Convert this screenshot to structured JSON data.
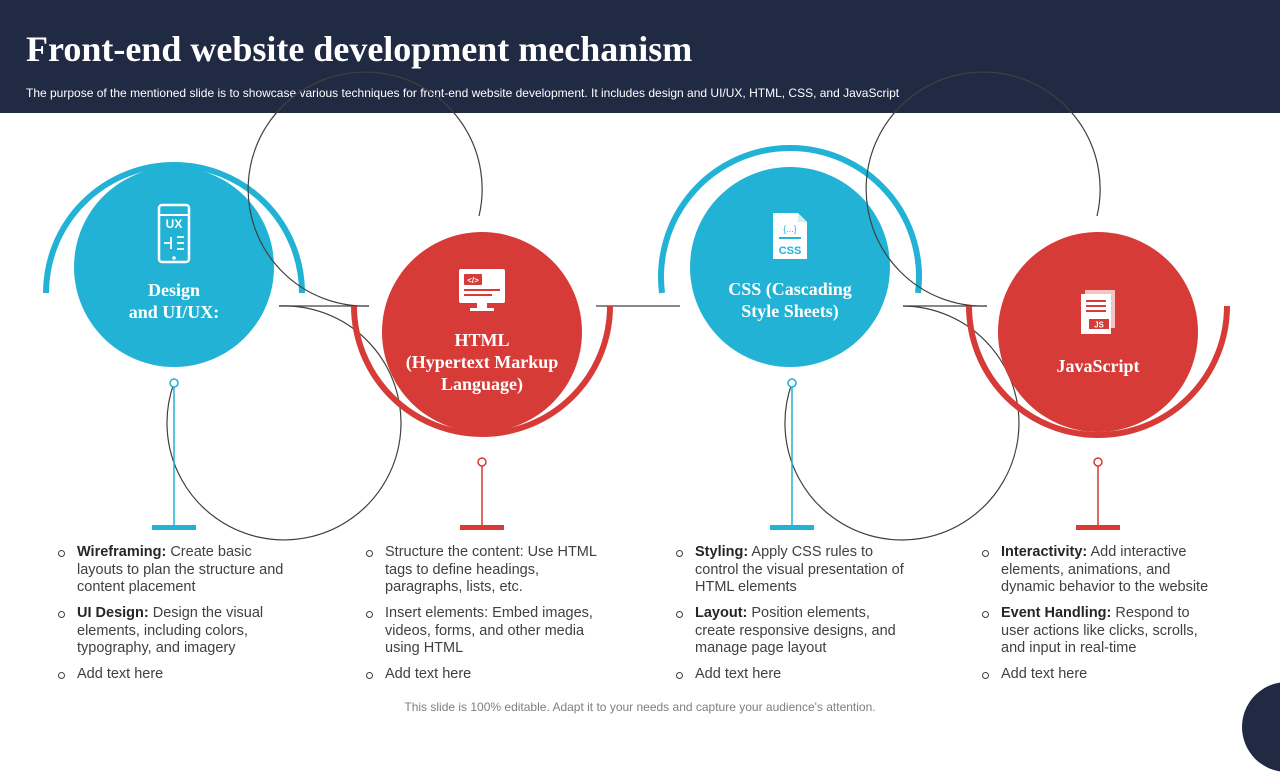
{
  "header": {
    "title": "Front-end website development mechanism",
    "subtitle": "The purpose of the mentioned slide is to showcase various techniques for front-end website development. It includes design and UI/UX, HTML, CSS, and JavaScript"
  },
  "colors": {
    "header_bg": "#212a43",
    "blue": "#22b2d6",
    "red": "#d63b38"
  },
  "steps": [
    {
      "title_lines": [
        "Design",
        "and UI/UX:"
      ],
      "icon": "ux-mobile-icon",
      "icon_text": "UX",
      "color": "blue",
      "bullets": [
        {
          "bold": "Wireframing:",
          "text": " Create basic layouts to plan the structure and content placement"
        },
        {
          "bold": "UI Design:",
          "text": " Design the visual elements, including colors, typography, and imagery"
        },
        {
          "bold": "",
          "text": "Add text here"
        }
      ]
    },
    {
      "title_lines": [
        "HTML",
        "(Hypertext Markup",
        "Language)"
      ],
      "icon": "html-code-monitor-icon",
      "icon_text": "</>",
      "color": "red",
      "bullets": [
        {
          "bold": "",
          "text": "Structure the content: Use HTML tags to define headings, paragraphs, lists, etc."
        },
        {
          "bold": "",
          "text": "Insert elements: Embed images, videos, forms, and other media using HTML"
        },
        {
          "bold": "",
          "text": "Add text here"
        }
      ]
    },
    {
      "title_lines": [
        "CSS (Cascading",
        "Style Sheets)"
      ],
      "icon": "css-file-icon",
      "icon_text": "CSS",
      "color": "blue",
      "bullets": [
        {
          "bold": "Styling:",
          "text": " Apply CSS rules to control the visual presentation of HTML elements"
        },
        {
          "bold": "Layout:",
          "text": " Position elements, create responsive designs, and manage page layout"
        },
        {
          "bold": "",
          "text": "Add text here"
        }
      ]
    },
    {
      "title_lines": [
        "JavaScript"
      ],
      "icon": "javascript-file-icon",
      "icon_text": "JS",
      "color": "red",
      "bullets": [
        {
          "bold": "Interactivity:",
          "text": " Add interactive elements, animations, and dynamic behavior to the website"
        },
        {
          "bold": "Event Handling:",
          "text": " Respond to user actions like clicks, scrolls, and input in real-time"
        },
        {
          "bold": "",
          "text": "Add text here"
        }
      ]
    }
  ],
  "footer": "This slide is 100% editable. Adapt it to your needs and capture your audience's attention."
}
